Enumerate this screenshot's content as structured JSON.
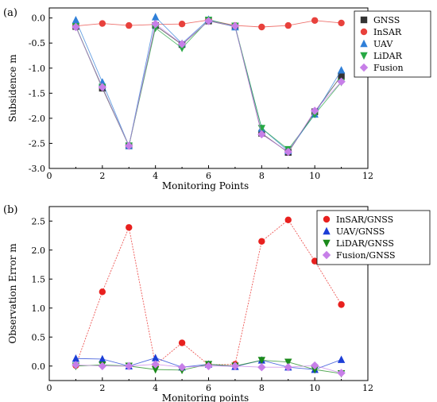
{
  "chart_data": [
    {
      "panel_label": "(a)",
      "type": "line",
      "xlabel": "Monitoring Points",
      "ylabel": "Subsidence m",
      "xlim": [
        0,
        12
      ],
      "ylim": [
        -3.0,
        0.2
      ],
      "xticks": [
        0,
        2,
        4,
        6,
        8,
        10,
        12
      ],
      "yticks": [
        0.0,
        -0.5,
        -1.0,
        -1.5,
        -2.0,
        -2.5,
        -3.0
      ],
      "grid": false,
      "legend_position": "top-right",
      "x": [
        1,
        2,
        3,
        4,
        5,
        6,
        7,
        8,
        9,
        10,
        11
      ],
      "series": [
        {
          "name": "GNSS",
          "marker": "square",
          "color": "#333333",
          "values": [
            -0.17,
            -1.4,
            -2.55,
            -0.15,
            -0.53,
            -0.06,
            -0.17,
            -2.3,
            -2.68,
            -1.87,
            -1.15
          ]
        },
        {
          "name": "InSAR",
          "marker": "circle",
          "color": "#e8413c",
          "values": [
            -0.16,
            -0.11,
            -0.15,
            -0.13,
            -0.12,
            -0.04,
            -0.15,
            -0.18,
            -0.15,
            -0.05,
            -0.1
          ]
        },
        {
          "name": "UAV",
          "marker": "triangle-up",
          "color": "#2f7fd8",
          "values": [
            -0.04,
            -1.28,
            -2.55,
            0.02,
            -0.51,
            -0.03,
            -0.18,
            -2.2,
            -2.65,
            -1.92,
            -1.04
          ]
        },
        {
          "name": "LiDAR",
          "marker": "triangle-down",
          "color": "#27a844",
          "values": [
            -0.17,
            -1.38,
            -2.55,
            -0.2,
            -0.6,
            -0.04,
            -0.16,
            -2.2,
            -2.62,
            -1.92,
            -1.28
          ]
        },
        {
          "name": "Fusion",
          "marker": "diamond",
          "color": "#c77fe8",
          "values": [
            -0.18,
            -1.38,
            -2.55,
            -0.12,
            -0.52,
            -0.06,
            -0.16,
            -2.32,
            -2.67,
            -1.85,
            -1.27
          ]
        }
      ]
    },
    {
      "panel_label": "(b)",
      "type": "line",
      "xlabel": "Monitoring points",
      "ylabel": "Observation Error m",
      "xlim": [
        0,
        12
      ],
      "ylim": [
        -0.25,
        2.75
      ],
      "xticks": [
        0,
        2,
        4,
        6,
        8,
        10,
        12
      ],
      "yticks": [
        0.0,
        0.5,
        1.0,
        1.5,
        2.0,
        2.5
      ],
      "grid": false,
      "legend_position": "top-right",
      "x": [
        1,
        2,
        3,
        4,
        5,
        6,
        7,
        8,
        9,
        10,
        11
      ],
      "series": [
        {
          "name": "InSAR/GNSS",
          "marker": "circle",
          "color": "#e8201e",
          "values": [
            0.01,
            1.28,
            2.39,
            0.02,
            0.4,
            0.02,
            0.03,
            2.15,
            2.52,
            1.81,
            1.06
          ]
        },
        {
          "name": "UAV/GNSS",
          "marker": "triangle-up",
          "color": "#1c3ed6",
          "values": [
            0.13,
            0.12,
            0.0,
            0.14,
            -0.02,
            0.03,
            -0.01,
            0.1,
            -0.02,
            -0.06,
            0.11
          ]
        },
        {
          "name": "LiDAR/GNSS",
          "marker": "triangle-down",
          "color": "#1a8a1a",
          "values": [
            0.0,
            0.02,
            0.0,
            -0.06,
            -0.07,
            0.03,
            0.0,
            0.1,
            0.07,
            -0.06,
            -0.13
          ]
        },
        {
          "name": "Fusion/GNSS",
          "marker": "diamond",
          "color": "#c77fe8",
          "values": [
            0.02,
            0.0,
            0.0,
            0.03,
            -0.02,
            0.0,
            0.0,
            -0.02,
            -0.02,
            0.01,
            -0.12
          ]
        }
      ]
    }
  ]
}
